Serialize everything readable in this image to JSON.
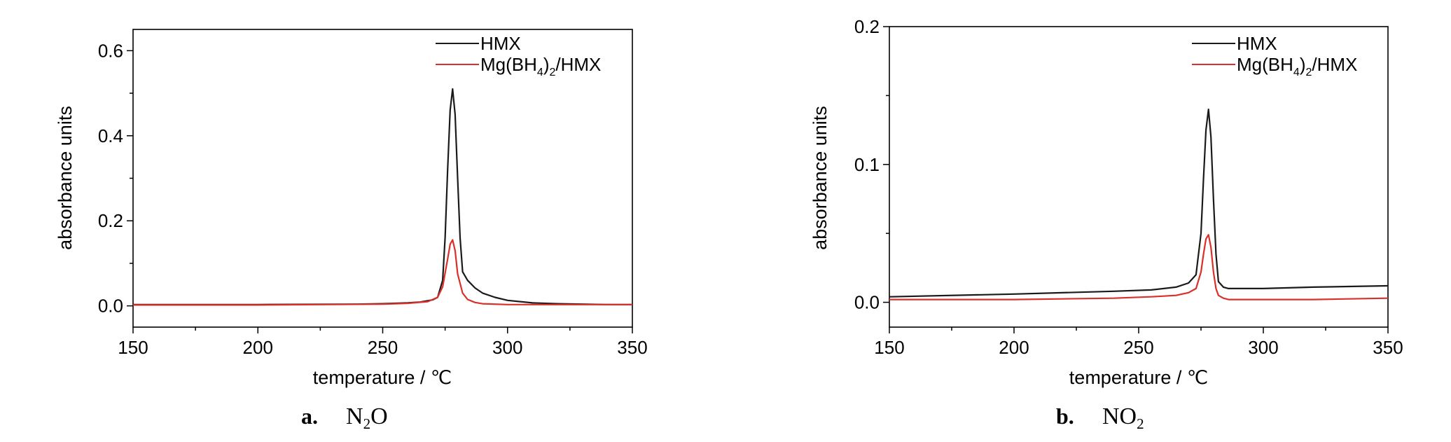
{
  "chart_data": [
    {
      "type": "line",
      "panel_letter": "a.",
      "caption_main": "N",
      "caption_sub": "2",
      "caption_tail": "O",
      "xlabel": "temperature / ℃",
      "ylabel": "absorbance units",
      "xlim": [
        150,
        350
      ],
      "ylim": [
        -0.05,
        0.65
      ],
      "xticks": [
        150,
        200,
        250,
        300,
        350
      ],
      "xtick_labels": [
        "150",
        "200",
        "250",
        "300",
        "350"
      ],
      "yticks": [
        0.0,
        0.2,
        0.4,
        0.6
      ],
      "ytick_labels": [
        "0.0",
        "0.2",
        "0.4",
        "0.6"
      ],
      "grid": false,
      "legend_position": "top-right",
      "series": [
        {
          "name": "HMX",
          "color": "#1a1a1a",
          "x": [
            150,
            200,
            240,
            250,
            260,
            265,
            270,
            272,
            274,
            275,
            276,
            277,
            278,
            279,
            280,
            281,
            282,
            284,
            287,
            290,
            295,
            300,
            310,
            320,
            330,
            340,
            350
          ],
          "y": [
            0.003,
            0.003,
            0.004,
            0.005,
            0.007,
            0.009,
            0.014,
            0.02,
            0.06,
            0.16,
            0.32,
            0.46,
            0.51,
            0.45,
            0.3,
            0.16,
            0.08,
            0.06,
            0.042,
            0.03,
            0.02,
            0.013,
            0.007,
            0.005,
            0.004,
            0.003,
            0.003
          ]
        },
        {
          "name": "Mg(BH4)2/HMX",
          "legend_main": "Mg(BH",
          "legend_sub1": "4",
          "legend_mid": ")",
          "legend_sub2": "2",
          "legend_tail": "/HMX",
          "color": "#d9302b",
          "x": [
            150,
            200,
            250,
            260,
            268,
            272,
            274,
            276,
            277,
            278,
            279,
            280,
            282,
            284,
            287,
            290,
            300,
            320,
            350
          ],
          "y": [
            0.002,
            0.002,
            0.004,
            0.006,
            0.01,
            0.02,
            0.045,
            0.11,
            0.145,
            0.155,
            0.13,
            0.075,
            0.03,
            0.015,
            0.008,
            0.005,
            0.003,
            0.003,
            0.003
          ]
        }
      ]
    },
    {
      "type": "line",
      "panel_letter": "b.",
      "caption_main": "NO",
      "caption_sub": "2",
      "caption_tail": "",
      "xlabel": "temperature / ℃",
      "ylabel": "absorbance units",
      "xlim": [
        150,
        350
      ],
      "ylim": [
        -0.018,
        0.2
      ],
      "xticks": [
        150,
        200,
        250,
        300,
        350
      ],
      "xtick_labels": [
        "150",
        "200",
        "250",
        "300",
        "350"
      ],
      "yticks": [
        0.0,
        0.1,
        0.2
      ],
      "ytick_labels": [
        "0.0",
        "0.1",
        "0.2"
      ],
      "grid": false,
      "legend_position": "top-right",
      "series": [
        {
          "name": "HMX",
          "color": "#1a1a1a",
          "x": [
            150,
            200,
            240,
            255,
            265,
            270,
            273,
            275,
            276,
            277,
            278,
            279,
            280,
            281,
            282,
            284,
            286,
            290,
            300,
            320,
            350
          ],
          "y": [
            0.004,
            0.006,
            0.008,
            0.009,
            0.011,
            0.014,
            0.02,
            0.05,
            0.09,
            0.125,
            0.14,
            0.12,
            0.075,
            0.035,
            0.015,
            0.011,
            0.01,
            0.01,
            0.01,
            0.011,
            0.012
          ]
        },
        {
          "name": "Mg(BH4)2/HMX",
          "legend_main": "Mg(BH",
          "legend_sub1": "4",
          "legend_mid": ")",
          "legend_sub2": "2",
          "legend_tail": "/HMX",
          "color": "#d9302b",
          "x": [
            150,
            200,
            240,
            255,
            265,
            270,
            273,
            275,
            276,
            277,
            278,
            279,
            280,
            281,
            282,
            284,
            286,
            290,
            300,
            320,
            350
          ],
          "y": [
            0.002,
            0.002,
            0.003,
            0.004,
            0.005,
            0.007,
            0.01,
            0.022,
            0.035,
            0.046,
            0.049,
            0.04,
            0.022,
            0.01,
            0.005,
            0.003,
            0.002,
            0.002,
            0.002,
            0.002,
            0.003
          ]
        }
      ]
    }
  ]
}
